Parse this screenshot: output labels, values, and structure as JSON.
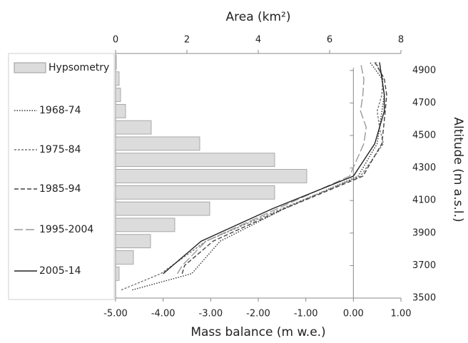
{
  "chart_data": [
    {
      "type": "bar",
      "orientation": "horizontal",
      "x_label": "Area (km²)",
      "xlim": [
        0,
        8
      ],
      "xticks": [
        0,
        2,
        4,
        6,
        8
      ],
      "ylim": [
        3500,
        5000
      ],
      "y": [
        4950,
        4850,
        4750,
        4650,
        4550,
        4450,
        4350,
        4250,
        4150,
        4050,
        3950,
        3850,
        3750,
        3650
      ],
      "series": [
        {
          "name": "Hypsometry",
          "color": "#dcdcdc",
          "values": [
            0.02,
            0.1,
            0.14,
            0.28,
            1.0,
            2.36,
            4.46,
            5.36,
            4.46,
            2.64,
            1.66,
            0.98,
            0.5,
            0.1
          ]
        }
      ]
    },
    {
      "type": "line",
      "x_label": "Mass balance (m w.e.)",
      "y_label": "Altitude (m a.s.l.)",
      "xlim": [
        -5,
        1
      ],
      "xticks": [
        {
          "value": -5,
          "label": "-5.00"
        },
        {
          "value": -4,
          "label": "-4.00"
        },
        {
          "value": -3,
          "label": "-3.00"
        },
        {
          "value": -2,
          "label": "-2.00"
        },
        {
          "value": -1,
          "label": "-1.00"
        },
        {
          "value": 0,
          "label": "0.00"
        },
        {
          "value": 1,
          "label": "1.00"
        }
      ],
      "ylim": [
        3500,
        5000
      ],
      "yticks": [
        3500,
        3700,
        3900,
        4100,
        4300,
        4500,
        4700,
        4900
      ],
      "series": [
        {
          "name": "1968-74",
          "color": "#333333",
          "dash": "1.5 2",
          "y": [
            3550,
            3650,
            3850,
            4050,
            4250,
            4450,
            4650,
            4750,
            4850,
            4950
          ],
          "values": [
            -4.65,
            -3.4,
            -2.8,
            -1.45,
            0.1,
            0.5,
            0.6,
            0.65,
            0.6,
            0.35
          ]
        },
        {
          "name": "1975-84",
          "color": "#777777",
          "dash": "3 2",
          "y": [
            3550,
            3650,
            3850,
            4050,
            4250,
            4450,
            4550,
            4650,
            4750,
            4850,
            4950
          ],
          "values": [
            -4.88,
            -4.05,
            -3.1,
            -1.5,
            0.15,
            0.63,
            0.55,
            0.5,
            0.6,
            0.62,
            0.48
          ]
        },
        {
          "name": "1985-94",
          "color": "#444444",
          "dash": "6 3",
          "y": [
            3650,
            3700,
            3850,
            4050,
            4250,
            4450,
            4650,
            4750,
            4850,
            4950
          ],
          "values": [
            -3.6,
            -3.55,
            -2.95,
            -1.45,
            0.2,
            0.6,
            0.67,
            0.7,
            0.65,
            0.45
          ]
        },
        {
          "name": "1995-2004",
          "color": "#999999",
          "dash": "12 4",
          "y": [
            3650,
            3700,
            3850,
            4050,
            4250,
            4450,
            4550,
            4650,
            4750,
            4850,
            4950
          ],
          "values": [
            -3.7,
            -3.6,
            -3.1,
            -1.6,
            -0.08,
            0.22,
            0.27,
            0.15,
            0.2,
            0.22,
            0.15
          ]
        },
        {
          "name": "2005-14",
          "color": "#222222",
          "dash": "",
          "y": [
            3650,
            3700,
            3850,
            4050,
            4250,
            4450,
            4550,
            4650,
            4750,
            4850,
            4950
          ],
          "values": [
            -4.0,
            -3.8,
            -3.2,
            -1.7,
            0.0,
            0.45,
            0.55,
            0.65,
            0.65,
            0.6,
            0.55
          ]
        }
      ]
    }
  ]
}
